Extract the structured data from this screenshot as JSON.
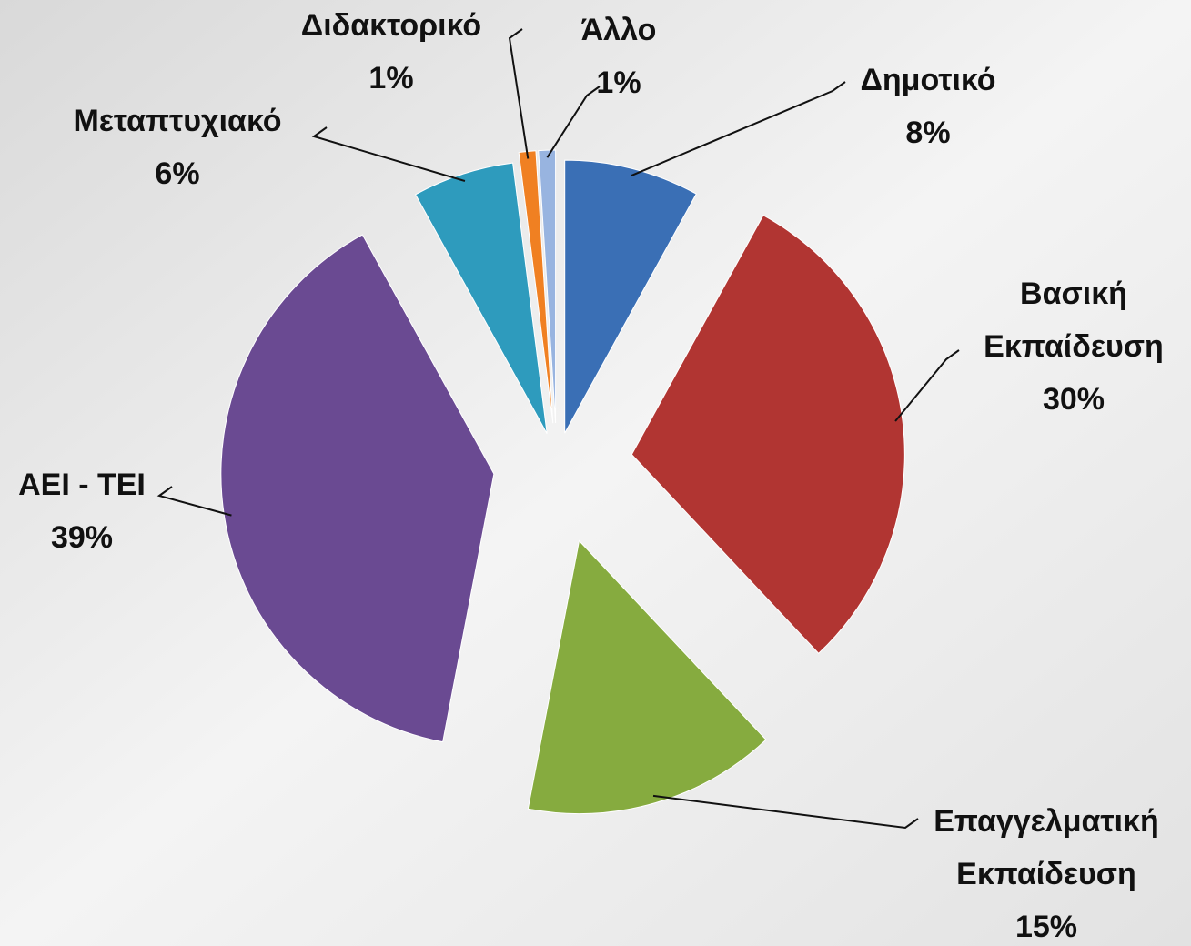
{
  "chart_data": {
    "type": "pie",
    "categories": [
      "Δημοτικό",
      "Βασική Εκπαίδευση",
      "Επαγγελματική Εκπαίδευση",
      "ΑΕΙ - ΤΕΙ",
      "Μεταπτυχιακό",
      "Διδακτορικό",
      "Άλλο"
    ],
    "values": [
      8,
      30,
      15,
      39,
      6,
      1,
      1
    ],
    "value_labels": [
      "8%",
      "30%",
      "15%",
      "39%",
      "6%",
      "1%",
      "1%"
    ],
    "colors": [
      "#3a6fb5",
      "#b13532",
      "#86ab3f",
      "#6a4a92",
      "#2e9bbd",
      "#f08022",
      "#98b4e0"
    ]
  }
}
